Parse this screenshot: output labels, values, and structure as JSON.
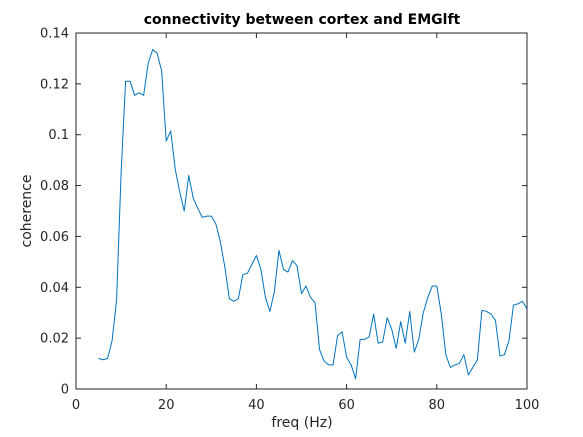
{
  "chart_data": {
    "type": "line",
    "title": "connectivity between cortex and EMGlft",
    "xlabel": "freq (Hz)",
    "ylabel": "coherence",
    "xlim": [
      0,
      100
    ],
    "ylim": [
      0,
      0.14
    ],
    "xticks": [
      0,
      20,
      40,
      60,
      80,
      100
    ],
    "yticks": [
      0,
      0.02,
      0.04,
      0.06,
      0.08,
      0.1,
      0.12,
      0.14
    ],
    "xtick_labels": [
      "0",
      "20",
      "40",
      "60",
      "80",
      "100"
    ],
    "ytick_labels": [
      "0",
      "0.02",
      "0.04",
      "0.06",
      "0.08",
      "0.1",
      "0.12",
      "0.14"
    ],
    "grid": false,
    "line_color": "#0072BD",
    "series": [
      {
        "x": [
          5,
          6,
          7,
          8,
          9,
          10,
          11,
          12,
          13,
          14,
          15,
          16,
          17,
          18,
          19,
          20,
          21,
          22,
          23,
          24,
          25,
          26,
          27,
          28,
          29,
          30,
          31,
          32,
          33,
          34,
          35,
          36,
          37,
          38,
          39,
          40,
          41,
          42,
          43,
          44,
          45,
          46,
          47,
          48,
          49,
          50,
          51,
          52,
          53,
          54,
          55,
          56,
          57,
          58,
          59,
          60,
          61,
          62,
          63,
          64,
          65,
          66,
          67,
          68,
          69,
          70,
          71,
          72,
          73,
          74,
          75,
          76,
          77,
          78,
          79,
          80,
          81,
          82,
          83,
          84,
          85,
          86,
          87,
          88,
          89,
          90,
          91,
          92,
          93,
          94,
          95,
          96,
          97,
          98,
          99,
          100
        ],
        "y": [
          0.012,
          0.0115,
          0.012,
          0.019,
          0.035,
          0.085,
          0.121,
          0.121,
          0.1155,
          0.1165,
          0.1155,
          0.128,
          0.1335,
          0.132,
          0.125,
          0.0975,
          0.1015,
          0.0865,
          0.0775,
          0.07,
          0.084,
          0.075,
          0.071,
          0.0675,
          0.068,
          0.068,
          0.065,
          0.058,
          0.048,
          0.0355,
          0.0345,
          0.0355,
          0.045,
          0.0455,
          0.049,
          0.0525,
          0.047,
          0.036,
          0.0305,
          0.0385,
          0.0545,
          0.047,
          0.046,
          0.0505,
          0.0485,
          0.0375,
          0.0405,
          0.036,
          0.034,
          0.0155,
          0.011,
          0.0095,
          0.0095,
          0.021,
          0.0225,
          0.0125,
          0.0095,
          0.004,
          0.0195,
          0.0195,
          0.0205,
          0.0295,
          0.018,
          0.0185,
          0.028,
          0.0235,
          0.016,
          0.0265,
          0.018,
          0.0305,
          0.0145,
          0.0195,
          0.03,
          0.036,
          0.0405,
          0.0405,
          0.0295,
          0.0135,
          0.0085,
          0.0095,
          0.01,
          0.0135,
          0.0055,
          0.0085,
          0.0115,
          0.031,
          0.0305,
          0.0295,
          0.027,
          0.013,
          0.0135,
          0.019,
          0.033,
          0.0335,
          0.0345,
          0.0315
        ]
      }
    ]
  }
}
